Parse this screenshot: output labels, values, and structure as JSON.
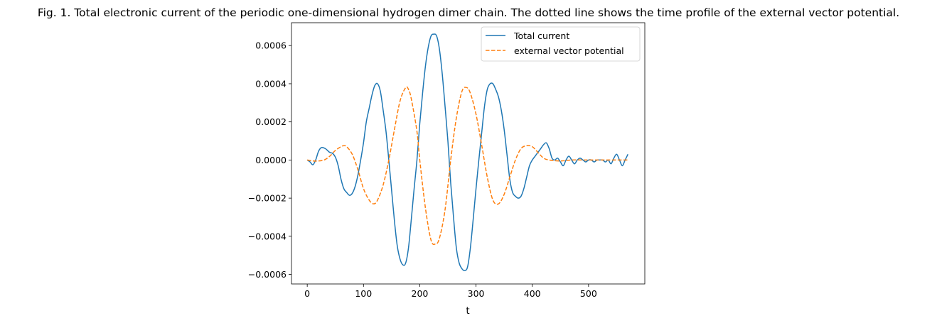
{
  "chart_data": {
    "type": "line",
    "title": "Fig. 1. Total electronic current of the periodic one-dimensional hydrogen dimer chain. The dotted line shows the time profile of the external vector potential.",
    "xlabel": "t",
    "ylabel": "",
    "xlim": [
      -28,
      600
    ],
    "ylim": [
      -0.00065,
      0.00072
    ],
    "xticks": [
      0,
      100,
      200,
      300,
      400,
      500
    ],
    "yticks": [
      -0.0006,
      -0.0004,
      -0.0002,
      0.0,
      0.0002,
      0.0004,
      0.0006
    ],
    "xtick_labels": [
      "0",
      "100",
      "200",
      "300",
      "400",
      "500"
    ],
    "ytick_labels": [
      "−0.0006",
      "−0.0004",
      "−0.0002",
      "0.0000",
      "0.0002",
      "0.0004",
      "0.0006"
    ],
    "grid": false,
    "legend_position": "top-right",
    "series": [
      {
        "name": "Total current",
        "style": "solid",
        "color": "#1f77b4",
        "points": [
          [
            0,
            0.0
          ],
          [
            5,
            -1e-05
          ],
          [
            10,
            -2.5e-05
          ],
          [
            15,
            0.0
          ],
          [
            20,
            4.5e-05
          ],
          [
            25,
            6.5e-05
          ],
          [
            32,
            6e-05
          ],
          [
            40,
            4e-05
          ],
          [
            45,
            3.5e-05
          ],
          [
            50,
            1.5e-05
          ],
          [
            55,
            -3e-05
          ],
          [
            60,
            -0.0001
          ],
          [
            65,
            -0.00015
          ],
          [
            70,
            -0.00017
          ],
          [
            75,
            -0.000185
          ],
          [
            80,
            -0.000175
          ],
          [
            85,
            -0.00014
          ],
          [
            90,
            -8e-05
          ],
          [
            95,
            0.0
          ],
          [
            100,
            9e-05
          ],
          [
            105,
            0.0002
          ],
          [
            110,
            0.00027
          ],
          [
            115,
            0.00034
          ],
          [
            120,
            0.00039
          ],
          [
            125,
            0.0004
          ],
          [
            130,
            0.00036
          ],
          [
            135,
            0.00026
          ],
          [
            140,
            0.00015
          ],
          [
            145,
            0.0
          ],
          [
            150,
            -0.00016
          ],
          [
            155,
            -0.00032
          ],
          [
            160,
            -0.00045
          ],
          [
            165,
            -0.00052
          ],
          [
            170,
            -0.00055
          ],
          [
            175,
            -0.00054
          ],
          [
            180,
            -0.00046
          ],
          [
            185,
            -0.00031
          ],
          [
            190,
            -0.00015
          ],
          [
            195,
            0.0
          ],
          [
            200,
            0.00019
          ],
          [
            205,
            0.00035
          ],
          [
            210,
            0.00049
          ],
          [
            215,
            0.00059
          ],
          [
            220,
            0.00065
          ],
          [
            225,
            0.00066
          ],
          [
            230,
            0.00065
          ],
          [
            235,
            0.00058
          ],
          [
            240,
            0.00045
          ],
          [
            245,
            0.00028
          ],
          [
            250,
            0.0001
          ],
          [
            255,
            -0.00012
          ],
          [
            260,
            -0.0003
          ],
          [
            265,
            -0.00046
          ],
          [
            270,
            -0.00054
          ],
          [
            275,
            -0.00057
          ],
          [
            280,
            -0.00058
          ],
          [
            285,
            -0.00056
          ],
          [
            290,
            -0.00046
          ],
          [
            295,
            -0.00031
          ],
          [
            300,
            -0.00015
          ],
          [
            305,
            0.0
          ],
          [
            310,
            0.00014
          ],
          [
            315,
            0.00028
          ],
          [
            320,
            0.00037
          ],
          [
            325,
            0.0004
          ],
          [
            330,
            0.0004
          ],
          [
            335,
            0.00037
          ],
          [
            340,
            0.00033
          ],
          [
            345,
            0.00026
          ],
          [
            350,
            0.00016
          ],
          [
            355,
            3e-05
          ],
          [
            360,
            -0.0001
          ],
          [
            365,
            -0.00017
          ],
          [
            370,
            -0.00019
          ],
          [
            375,
            -0.0002
          ],
          [
            380,
            -0.00019
          ],
          [
            385,
            -0.00015
          ],
          [
            390,
            -9e-05
          ],
          [
            395,
            -3e-05
          ],
          [
            400,
            0.0
          ],
          [
            405,
            2e-05
          ],
          [
            410,
            4e-05
          ],
          [
            415,
            6e-05
          ],
          [
            420,
            8e-05
          ],
          [
            425,
            9e-05
          ],
          [
            430,
            6e-05
          ],
          [
            435,
            1e-05
          ],
          [
            440,
            0.0
          ],
          [
            445,
            1e-05
          ],
          [
            450,
            -1e-05
          ],
          [
            455,
            -3e-05
          ],
          [
            460,
            0.0
          ],
          [
            465,
            2e-05
          ],
          [
            470,
            0.0
          ],
          [
            475,
            -2e-05
          ],
          [
            480,
            0.0
          ],
          [
            485,
            1e-05
          ],
          [
            490,
            0.0
          ],
          [
            495,
            -1e-05
          ],
          [
            500,
            0.0
          ],
          [
            505,
            0.0
          ],
          [
            510,
            -1e-05
          ],
          [
            515,
            0.0
          ],
          [
            520,
            0.0
          ],
          [
            525,
            0.0
          ],
          [
            530,
            -1e-05
          ],
          [
            535,
            0.0
          ],
          [
            540,
            -2e-05
          ],
          [
            545,
            1e-05
          ],
          [
            550,
            3e-05
          ],
          [
            555,
            0.0
          ],
          [
            560,
            -3e-05
          ],
          [
            565,
            0.0
          ],
          [
            570,
            3e-05
          ]
        ]
      },
      {
        "name": "external vector potential",
        "style": "dashed",
        "color": "#ff7f0e",
        "points": [
          [
            0,
            0.0
          ],
          [
            10,
            -5e-06
          ],
          [
            20,
            -5e-06
          ],
          [
            30,
            0.0
          ],
          [
            40,
            2e-05
          ],
          [
            50,
            5e-05
          ],
          [
            60,
            7e-05
          ],
          [
            65,
            7.5e-05
          ],
          [
            70,
            7e-05
          ],
          [
            80,
            3e-05
          ],
          [
            90,
            -5e-05
          ],
          [
            100,
            -0.00015
          ],
          [
            110,
            -0.00021
          ],
          [
            118,
            -0.00023
          ],
          [
            125,
            -0.00021
          ],
          [
            135,
            -0.00013
          ],
          [
            145,
            0.0
          ],
          [
            155,
            0.00016
          ],
          [
            165,
            0.00031
          ],
          [
            175,
            0.00038
          ],
          [
            180,
            0.00037
          ],
          [
            185,
            0.00032
          ],
          [
            195,
            0.00015
          ],
          [
            200,
            0.0
          ],
          [
            210,
            -0.00025
          ],
          [
            220,
            -0.00042
          ],
          [
            228,
            -0.00044
          ],
          [
            235,
            -0.00041
          ],
          [
            245,
            -0.00026
          ],
          [
            255,
            0.0
          ],
          [
            265,
            0.00022
          ],
          [
            275,
            0.00036
          ],
          [
            283,
            0.00038
          ],
          [
            290,
            0.00035
          ],
          [
            300,
            0.00024
          ],
          [
            310,
            8e-05
          ],
          [
            320,
            -9e-05
          ],
          [
            330,
            -0.00021
          ],
          [
            340,
            -0.00023
          ],
          [
            350,
            -0.00018
          ],
          [
            360,
            -9e-05
          ],
          [
            370,
            0.0
          ],
          [
            380,
            6e-05
          ],
          [
            390,
            7.5e-05
          ],
          [
            400,
            7e-05
          ],
          [
            410,
            4e-05
          ],
          [
            420,
            1e-05
          ],
          [
            430,
            0.0
          ],
          [
            450,
            -5e-06
          ],
          [
            470,
            0.0
          ],
          [
            500,
            0.0
          ],
          [
            530,
            0.0
          ],
          [
            570,
            0.0
          ]
        ]
      }
    ]
  }
}
